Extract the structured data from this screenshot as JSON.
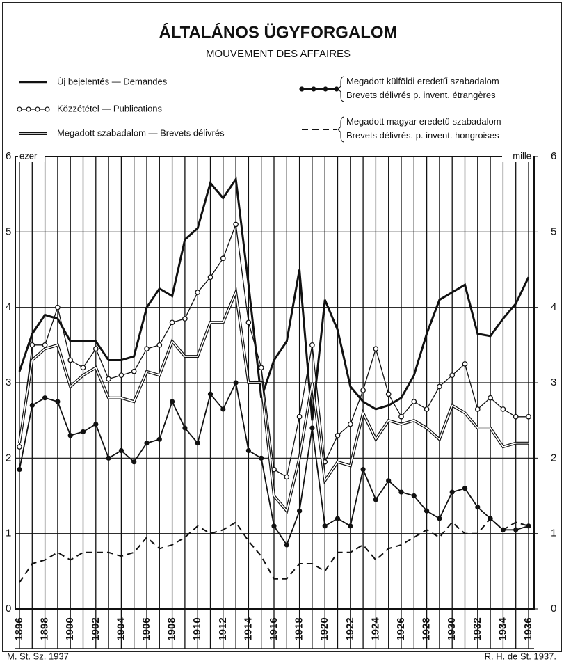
{
  "chart_data": {
    "type": "line",
    "title": "ÁLTALÁNOS ÜGYFORGALOM",
    "subtitle": "MOUVEMENT DES AFFAIRES",
    "y_label": "ezer",
    "y2_label": "mille",
    "footer_left": "M. St. Sz. 1937",
    "footer_right": "R. H. de St. 1937.",
    "x": [
      1896,
      1897,
      1898,
      1899,
      1900,
      1901,
      1902,
      1903,
      1904,
      1905,
      1906,
      1907,
      1908,
      1909,
      1910,
      1911,
      1912,
      1913,
      1914,
      1915,
      1916,
      1917,
      1918,
      1919,
      1920,
      1921,
      1922,
      1923,
      1924,
      1925,
      1926,
      1927,
      1928,
      1929,
      1930,
      1931,
      1932,
      1933,
      1934,
      1935,
      1936
    ],
    "xlim": [
      1896,
      1936
    ],
    "xticks": [
      1896,
      1898,
      1900,
      1902,
      1904,
      1906,
      1908,
      1910,
      1912,
      1914,
      1916,
      1918,
      1920,
      1922,
      1924,
      1926,
      1928,
      1930,
      1932,
      1934,
      1936
    ],
    "ylim": [
      0,
      6
    ],
    "yticks": [
      0,
      1,
      2,
      3,
      4,
      5,
      6
    ],
    "y2lim": [
      0,
      6
    ],
    "y2ticks": [
      0,
      1,
      2,
      3,
      4,
      5,
      6
    ],
    "grid": true,
    "series": [
      {
        "name": "Új bejelentés — Demandes",
        "color": "#111111",
        "style": "thick",
        "values": [
          3.15,
          3.65,
          3.9,
          3.85,
          3.55,
          3.55,
          3.55,
          3.3,
          3.3,
          3.35,
          4.0,
          4.25,
          4.15,
          4.9,
          5.05,
          5.65,
          5.45,
          5.7,
          4.3,
          2.8,
          3.3,
          3.55,
          4.5,
          2.5,
          4.1,
          3.7,
          2.95,
          2.75,
          2.65,
          2.7,
          2.8,
          3.1,
          3.65,
          4.1,
          4.2,
          4.3,
          3.65,
          3.62,
          3.85,
          4.05,
          4.4
        ]
      },
      {
        "name": "Közzététel — Publications",
        "color": "#111111",
        "style": "circles",
        "values": [
          2.15,
          3.5,
          3.5,
          4.0,
          3.3,
          3.2,
          3.45,
          3.05,
          3.1,
          3.15,
          3.45,
          3.5,
          3.8,
          3.85,
          4.2,
          4.4,
          4.65,
          5.1,
          3.8,
          3.2,
          1.85,
          1.75,
          2.55,
          3.5,
          1.95,
          2.3,
          2.45,
          2.9,
          3.45,
          2.85,
          2.55,
          2.75,
          2.65,
          2.95,
          3.1,
          3.25,
          2.65,
          2.8,
          2.65,
          2.55,
          2.55
        ]
      },
      {
        "name": "Megadott szabadalom — Brevets délivrés",
        "color": "#111111",
        "style": "double",
        "values": [
          2.2,
          3.3,
          3.45,
          3.5,
          2.95,
          3.1,
          3.2,
          2.8,
          2.8,
          2.75,
          3.15,
          3.1,
          3.55,
          3.35,
          3.35,
          3.8,
          3.8,
          4.2,
          3.0,
          3.0,
          1.5,
          1.3,
          2.0,
          3.0,
          1.7,
          1.95,
          1.9,
          2.6,
          2.25,
          2.5,
          2.45,
          2.5,
          2.4,
          2.25,
          2.7,
          2.6,
          2.4,
          2.4,
          2.15,
          2.2,
          2.2
        ]
      },
      {
        "name": "Megadott külföldi eredetű szabadalom\nBrevets délivrés p. invent. étrangères",
        "color": "#111111",
        "style": "dots",
        "values": [
          1.85,
          2.7,
          2.8,
          2.75,
          2.3,
          2.35,
          2.45,
          2.0,
          2.1,
          1.95,
          2.2,
          2.25,
          2.75,
          2.4,
          2.2,
          2.85,
          2.65,
          3.0,
          2.1,
          2.0,
          1.1,
          0.85,
          1.3,
          2.4,
          1.1,
          1.2,
          1.1,
          1.85,
          1.45,
          1.7,
          1.55,
          1.5,
          1.3,
          1.2,
          1.55,
          1.6,
          1.35,
          1.2,
          1.05,
          1.05,
          1.1
        ]
      },
      {
        "name": "Megadott magyar eredetű szabadalom\nBrevets délivrés. p. invent. hongroises",
        "color": "#111111",
        "style": "dashed",
        "values": [
          0.35,
          0.6,
          0.65,
          0.75,
          0.65,
          0.75,
          0.75,
          0.75,
          0.7,
          0.75,
          0.95,
          0.8,
          0.85,
          0.95,
          1.1,
          1.0,
          1.05,
          1.15,
          0.9,
          0.7,
          0.4,
          0.4,
          0.6,
          0.6,
          0.5,
          0.75,
          0.75,
          0.85,
          0.65,
          0.8,
          0.85,
          0.95,
          1.05,
          0.95,
          1.15,
          1.0,
          1.0,
          1.2,
          1.05,
          1.15,
          1.1
        ]
      }
    ]
  }
}
